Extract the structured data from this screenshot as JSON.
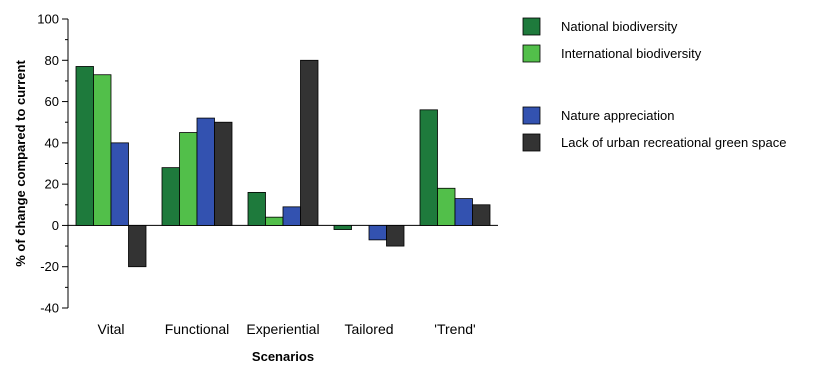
{
  "chart_data": {
    "type": "bar",
    "xlabel": "Scenarios",
    "ylabel": "% of change compared to current",
    "ylim": [
      -40,
      100
    ],
    "yticks": [
      -40,
      -20,
      0,
      20,
      40,
      60,
      80,
      100
    ],
    "grid": false,
    "legend_placement": "right",
    "categories": [
      "Vital",
      "Functional",
      "Experiential",
      "Tailored",
      "'Trend'"
    ],
    "series": [
      {
        "name": "National biodiversity",
        "color": "#1e7a3c",
        "values": [
          77,
          28,
          16,
          -2,
          56
        ]
      },
      {
        "name": "International biodiversity",
        "color": "#52bf4a",
        "values": [
          73,
          45,
          4,
          0,
          18
        ]
      },
      {
        "name": "Nature appreciation",
        "color": "#3352b0",
        "values": [
          40,
          52,
          9,
          -7,
          13
        ]
      },
      {
        "name": "Lack of urban recreational green space",
        "color": "#333333",
        "values": [
          -20,
          50,
          80,
          -10,
          10
        ]
      }
    ]
  }
}
